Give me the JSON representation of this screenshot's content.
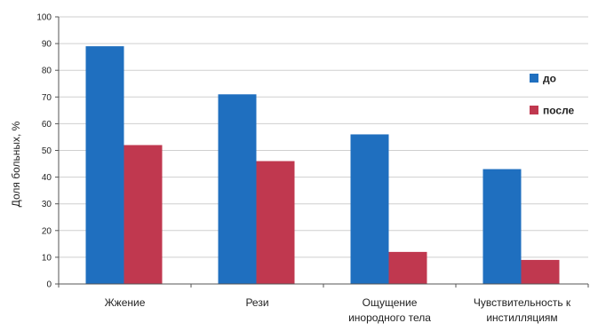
{
  "chart_data": {
    "type": "bar",
    "ylabel": "Доля больных, %",
    "ylim": [
      0,
      100
    ],
    "yticks": [
      0,
      10,
      20,
      30,
      40,
      50,
      60,
      70,
      80,
      90,
      100
    ],
    "grid": true,
    "legend_position": "right",
    "categories": [
      [
        "Жжение"
      ],
      [
        "Рези"
      ],
      [
        "Ощущение",
        "инородного тела"
      ],
      [
        "Чувствительность к",
        "инстилляциям"
      ]
    ],
    "series": [
      {
        "name": "до",
        "color": "#1f6fbf",
        "values": [
          89,
          71,
          56,
          43
        ]
      },
      {
        "name": "после",
        "color": "#c0384f",
        "values": [
          52,
          46,
          12,
          9
        ]
      }
    ]
  }
}
